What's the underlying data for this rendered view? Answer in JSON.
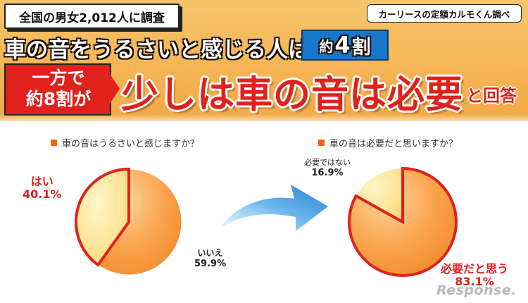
{
  "header": {
    "survey": "全国の男女2,012人に調査",
    "source": "カーリースの定額カルモくん調べ",
    "headline_main": "車の音をうるさいと感じる人は",
    "headline_badge_small": "約",
    "headline_badge_big": "4",
    "headline_badge_unit": "割",
    "red_line1": "一方で",
    "red_line2": "約8割が",
    "conclusion_main": "少しは車の音は必要",
    "conclusion_tail": "と回答"
  },
  "watermark": "Response.",
  "colors": {
    "header": "#f3a945",
    "accent_red": "#e0211c",
    "badge_blue": "#1677cc",
    "pie_orange": "#f79a3c",
    "pie_light": "#fde38f",
    "arrow_blue": "#2a86d8"
  },
  "chart_data": [
    {
      "type": "pie",
      "title": "車の音はうるさいと感じますか？",
      "slices": [
        {
          "label": "はい",
          "value": 40.1,
          "display": "40.1%",
          "highlight": true
        },
        {
          "label": "いいえ",
          "value": 59.9,
          "display": "59.9%",
          "highlight": false
        }
      ]
    },
    {
      "type": "pie",
      "title": "車の音は必要だと思いますか？",
      "slices": [
        {
          "label": "必要ではない",
          "value": 16.9,
          "display": "16.9%",
          "highlight": false
        },
        {
          "label": "必要だと思う",
          "value": 83.1,
          "display": "83.1%",
          "highlight": true
        }
      ]
    }
  ]
}
